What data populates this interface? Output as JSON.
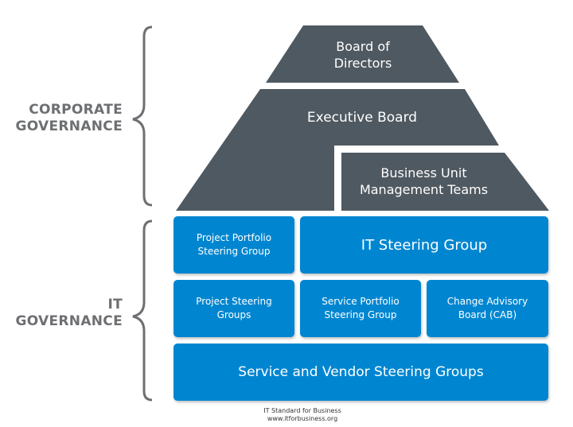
{
  "side_labels": {
    "corporate_line1": "CORPORATE",
    "corporate_line2": "GOVERNANCE",
    "it_line1": "IT",
    "it_line2": "GOVERNANCE"
  },
  "corporate": {
    "board_line1": "Board of",
    "board_line2": "Directors",
    "executive": "Executive Board",
    "bu_line1": "Business Unit",
    "bu_line2": "Management Teams"
  },
  "it": {
    "portfolio_line1": "Project Portfolio",
    "portfolio_line2": "Steering Group",
    "it_steering": "IT Steering Group",
    "project_steering_line1": "Project Steering",
    "project_steering_line2": "Groups",
    "service_portfolio_line1": "Service Portfolio",
    "service_portfolio_line2": "Steering Group",
    "cab_line1": "Change Advisory",
    "cab_line2": "Board (CAB)",
    "vendor": "Service and Vendor Steering Groups"
  },
  "footer": {
    "line1": "IT Standard for Business",
    "line2": "www.itforbusiness.org"
  },
  "colors": {
    "dark_slate": "#4f5961",
    "it_blue": "#0086d1",
    "brace_gray": "#6d6f72"
  }
}
